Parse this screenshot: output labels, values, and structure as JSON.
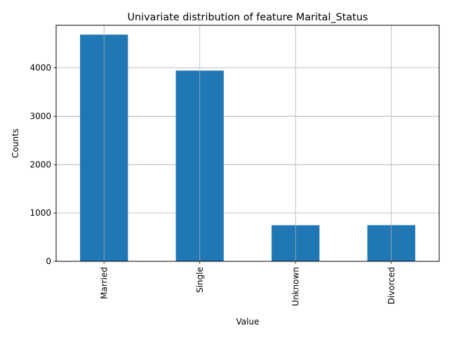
{
  "chart_data": {
    "type": "bar",
    "title": "Univariate distribution of feature Marital_Status",
    "xlabel": "Value",
    "ylabel": "Counts",
    "categories": [
      "Married",
      "Single",
      "Unknown",
      "Divorced"
    ],
    "values": [
      4687,
      3943,
      746,
      748
    ],
    "ylim": [
      0,
      4880
    ],
    "yticks": [
      0,
      1000,
      2000,
      3000,
      4000
    ],
    "grid": true,
    "bar_color": "#1f77b4",
    "grid_color": "#b0b0b0"
  }
}
